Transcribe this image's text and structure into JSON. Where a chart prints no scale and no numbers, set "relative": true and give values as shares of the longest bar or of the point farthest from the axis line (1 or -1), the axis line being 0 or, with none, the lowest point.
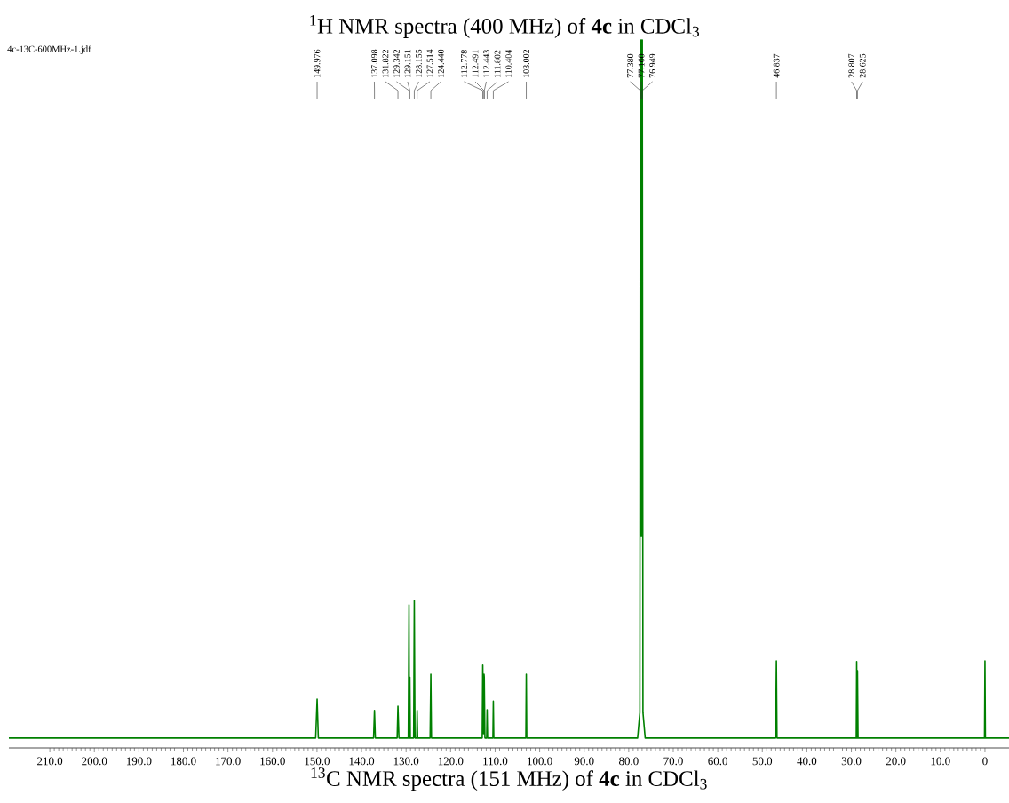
{
  "chart_data": {
    "type": "line",
    "relative": true,
    "title": "$^{1}$H NMR spectra (400 MHz) of **4c** in CDCl$_{3}$",
    "xlabel": "$^{13}$C NMR spectra (151 MHz) of **4c** in CDCl$_{3}$",
    "xlim": [
      219.2,
      -5.4
    ],
    "xticks": [
      {
        "value": 210,
        "label": "210.0"
      },
      {
        "value": 200,
        "label": "200.0"
      },
      {
        "value": 190,
        "label": "190.0"
      },
      {
        "value": 180,
        "label": "180.0"
      },
      {
        "value": 170,
        "label": "170.0"
      },
      {
        "value": 160,
        "label": "160.0"
      },
      {
        "value": 150,
        "label": "150.0"
      },
      {
        "value": 140,
        "label": "140.0"
      },
      {
        "value": 130,
        "label": "130.0"
      },
      {
        "value": 120,
        "label": "120.0"
      },
      {
        "value": 110,
        "label": "110.0"
      },
      {
        "value": 100,
        "label": "100.0"
      },
      {
        "value": 90,
        "label": "90.0"
      },
      {
        "value": 80,
        "label": "80.0"
      },
      {
        "value": 70,
        "label": "70.0"
      },
      {
        "value": 60,
        "label": "60.0"
      },
      {
        "value": 50,
        "label": "50.0"
      },
      {
        "value": 40,
        "label": "40.0"
      },
      {
        "value": 30,
        "label": "30.0"
      },
      {
        "value": 20,
        "label": "20.0"
      },
      {
        "value": 10,
        "label": "10.0"
      },
      0
    ],
    "x": [
      219.2,
      150.3,
      149.976,
      149.7,
      137.3,
      137.098,
      136.9,
      132.0,
      131.822,
      131.6,
      129.5,
      129.342,
      129.25,
      129.151,
      129.05,
      128.3,
      128.155,
      128.0,
      127.6,
      127.514,
      127.4,
      124.6,
      124.44,
      124.3,
      112.9,
      112.778,
      112.6,
      112.491,
      112.443,
      112.3,
      111.9,
      111.802,
      111.7,
      110.5,
      110.404,
      110.3,
      103.1,
      103.002,
      102.9,
      78.0,
      77.5,
      77.38,
      77.27,
      77.16,
      77.05,
      76.949,
      76.8,
      76.3,
      47.0,
      46.837,
      46.7,
      28.9,
      28.807,
      28.72,
      28.625,
      28.5,
      0.1,
      0,
      -0.1,
      -5.4
    ],
    "series": [
      {
        "color": "#008000",
        "values": [
          0.014,
          0.014,
          0.069,
          0.014,
          0.014,
          0.053,
          0.014,
          0.014,
          0.059,
          0.014,
          0.014,
          0.202,
          0.014,
          0.1,
          0.014,
          0.014,
          0.208,
          0.014,
          0.014,
          0.053,
          0.014,
          0.014,
          0.104,
          0.014,
          0.014,
          0.117,
          0.02,
          0.104,
          0.1,
          0.014,
          0.014,
          0.054,
          0.014,
          0.014,
          0.066,
          0.014,
          0.014,
          0.104,
          0.014,
          0.014,
          0.05,
          1,
          0.3,
          1,
          0.3,
          1,
          0.05,
          0.014,
          0.014,
          0.123,
          0.014,
          0.014,
          0.122,
          0.014,
          0.109,
          0.014,
          0.014,
          0.123,
          0.014,
          0.014
        ]
      }
    ],
    "annotations": [
      "4c-13C-600MHz-1.jdf",
      {
        "text": "149.976",
        "x": 149.976
      },
      {
        "text": "137.098",
        "x": 137.098
      },
      {
        "text": "131.822",
        "x": 131.822
      },
      {
        "text": "129.342",
        "x": 129.342
      },
      {
        "text": "129.151",
        "x": 129.151
      },
      {
        "text": "128.155",
        "x": 128.155
      },
      {
        "text": "127.514",
        "x": 127.514
      },
      {
        "text": "124.440",
        "x": 124.44
      },
      {
        "text": "112.778",
        "x": 112.778
      },
      {
        "text": "112.491",
        "x": 112.491
      },
      {
        "text": "112.443",
        "x": 112.443
      },
      {
        "text": "111.802",
        "x": 111.802
      },
      {
        "text": "110.404",
        "x": 110.404
      },
      {
        "text": "103.002",
        "x": 103.002
      },
      {
        "text": "77.380",
        "x": 77.38
      },
      {
        "text": "77.160",
        "x": 77.16
      },
      {
        "text": "76.949",
        "x": 76.949
      },
      {
        "text": "46.837",
        "x": 46.837
      },
      {
        "text": "28.807",
        "x": 28.807
      },
      {
        "text": "28.625",
        "x": 28.625
      }
    ]
  }
}
